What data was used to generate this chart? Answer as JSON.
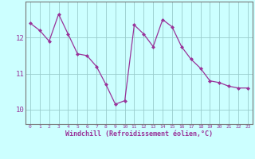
{
  "hours": [
    0,
    1,
    2,
    3,
    4,
    5,
    6,
    7,
    8,
    9,
    10,
    11,
    12,
    13,
    14,
    15,
    16,
    17,
    18,
    19,
    20,
    21,
    22,
    23
  ],
  "values": [
    12.4,
    12.2,
    11.9,
    12.65,
    12.1,
    11.55,
    11.5,
    11.2,
    10.7,
    10.15,
    10.25,
    12.35,
    12.1,
    11.75,
    12.5,
    12.3,
    11.75,
    11.4,
    11.15,
    10.8,
    10.75,
    10.65,
    10.6,
    10.6
  ],
  "line_color": "#993399",
  "bg_color": "#ccffff",
  "grid_color": "#99cccc",
  "xlabel": "Windchill (Refroidissement éolien,°C)",
  "yticks": [
    10,
    11,
    12
  ],
  "ylim": [
    9.6,
    13.0
  ],
  "xlim": [
    -0.5,
    23.5
  ]
}
